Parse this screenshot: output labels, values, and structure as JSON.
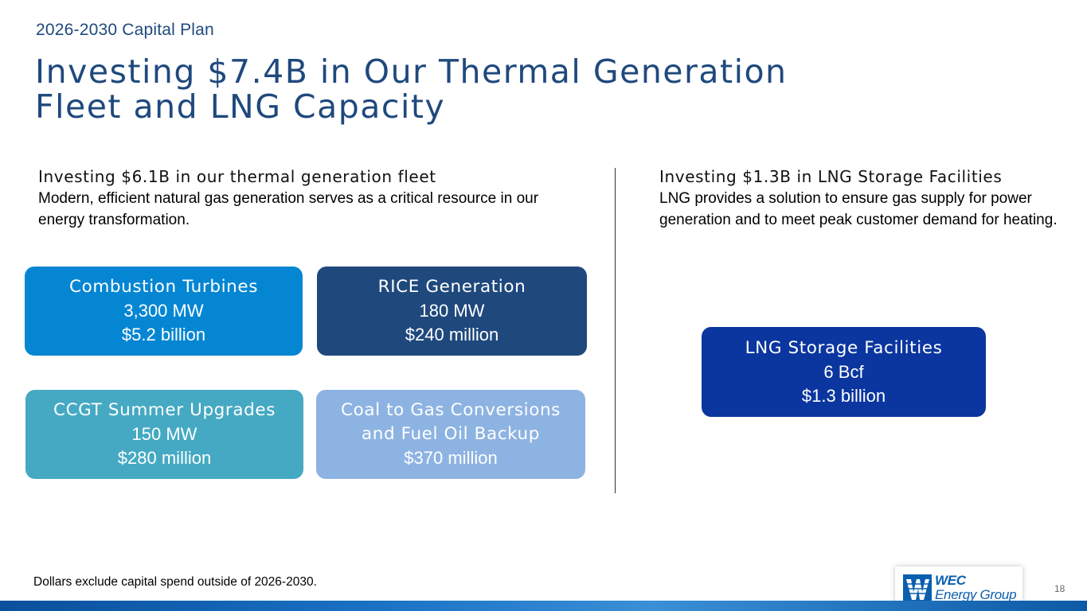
{
  "header": {
    "kicker": "2026-2030 Capital Plan",
    "title": "Investing $7.4B in Our Thermal Generation Fleet and LNG Capacity"
  },
  "left_column": {
    "heading": "Investing $6.1B in our thermal generation fleet",
    "body": "Modern, efficient natural gas generation serves as a critical resource in our energy transformation."
  },
  "right_column": {
    "heading": "Investing $1.3B in LNG Storage Facilities",
    "body": "LNG provides a solution to ensure gas supply for power generation and to meet peak customer demand for heating."
  },
  "boxes": {
    "combustion_turbines": {
      "name": "Combustion Turbines",
      "capacity": "3,300 MW",
      "cost": "$5.2 billion",
      "color": "#0586d3"
    },
    "rice_generation": {
      "name": "RICE Generation",
      "capacity": "180 MW",
      "cost": "$240 million",
      "color": "#1f497d"
    },
    "ccgt_upgrades": {
      "name": "CCGT Summer Upgrades",
      "capacity": "150 MW",
      "cost": "$280 million",
      "color": "#45a9c3"
    },
    "coal_to_gas": {
      "name_line1": "Coal to Gas Conversions",
      "name_line2": "and Fuel Oil Backup",
      "cost": "$370 million",
      "color": "#8db3e2"
    },
    "lng_storage": {
      "name": "LNG Storage Facilities",
      "capacity": "6 Bcf",
      "cost": "$1.3 billion",
      "color": "#0b369f"
    }
  },
  "footer": {
    "footnote": "Dollars exclude capital spend outside of 2026-2030.",
    "page_number": "18",
    "logo_line1": "WEC",
    "logo_line2": "Energy Group"
  }
}
